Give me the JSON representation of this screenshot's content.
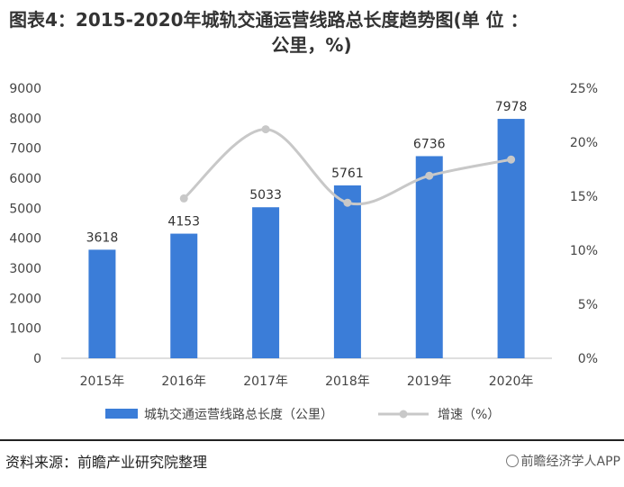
{
  "title": {
    "line1": "图表4：2015-2020年城轨交通运营线路总长度趋势图(单 位 ：",
    "line2": "公里，%)"
  },
  "chart_data": {
    "type": "bar",
    "categories": [
      "2015年",
      "2016年",
      "2017年",
      "2018年",
      "2019年",
      "2020年"
    ],
    "series": [
      {
        "name": "城轨交通运营线路总长度（公里）",
        "type": "bar",
        "axis": "left",
        "values": [
          3618,
          4153,
          5033,
          5761,
          6736,
          7978
        ]
      },
      {
        "name": "增速（%）",
        "type": "line",
        "axis": "right",
        "values": [
          null,
          14.8,
          21.2,
          14.4,
          16.9,
          18.4
        ]
      }
    ],
    "y_left": {
      "min": 0,
      "max": 9000,
      "ticks": [
        "0",
        "1000",
        "2000",
        "3000",
        "4000",
        "5000",
        "6000",
        "7000",
        "8000",
        "9000"
      ]
    },
    "y_right": {
      "min": 0,
      "max": 25,
      "ticks": [
        "0%",
        "5%",
        "10%",
        "15%",
        "20%",
        "25%"
      ]
    },
    "legend_position": "bottom",
    "colors": {
      "bar": "#3b7dd8",
      "line": "#c8c8c8",
      "axis": "#bfbfbf"
    }
  },
  "footer": {
    "source": "资料来源：前瞻产业研究院整理",
    "watermark": "前瞻经济学人APP"
  }
}
